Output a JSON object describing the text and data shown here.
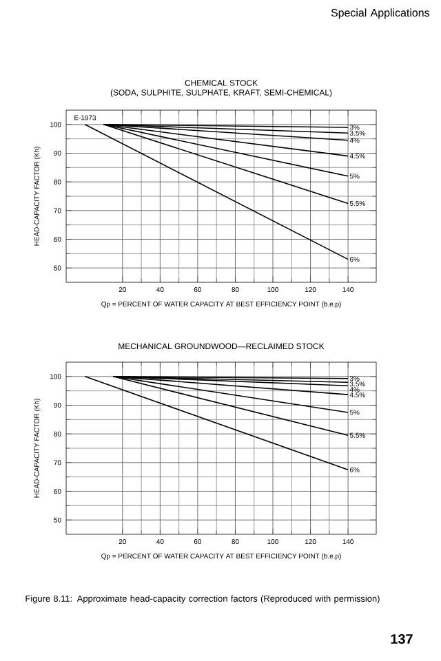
{
  "chart_data": [
    {
      "type": "line",
      "title": "CHEMICAL STOCK",
      "subtitle": "(SODA, SULPHITE, SULPHATE, KRAFT, SEMI-CHEMICAL)",
      "xlabel": "Qp = PERCENT OF WATER CAPACITY AT BEST EFFICIENCY POINT (b.e.p)",
      "ylabel": "HEAD-CAPACITY FACTOR (Kh)",
      "annotations": [
        "E-1973",
        "Special Applications"
      ],
      "xlim": [
        -10,
        155
      ],
      "ylim": [
        45,
        105
      ],
      "xticks": [
        20,
        40,
        60,
        80,
        100,
        120,
        140
      ],
      "yticks": [
        50,
        60,
        70,
        80,
        90,
        100
      ],
      "grid": true,
      "legend": "right",
      "series": [
        {
          "name": "3%",
          "color": "#000000",
          "x": [
            10,
            140
          ],
          "values": [
            100,
            99
          ]
        },
        {
          "name": "3.5%",
          "color": "#000000",
          "x": [
            10,
            140
          ],
          "values": [
            100,
            97
          ]
        },
        {
          "name": "4%",
          "color": "#000000",
          "x": [
            10,
            140
          ],
          "values": [
            100,
            94.5
          ]
        },
        {
          "name": "4.5%",
          "color": "#000000",
          "x": [
            10,
            140
          ],
          "values": [
            100,
            89
          ]
        },
        {
          "name": "5%",
          "color": "#000000",
          "x": [
            10,
            140
          ],
          "values": [
            100,
            82
          ]
        },
        {
          "name": "5.5%",
          "color": "#000000",
          "x": [
            10,
            140
          ],
          "values": [
            100,
            72.5
          ]
        },
        {
          "name": "6%",
          "color": "#000000",
          "x": [
            0,
            140
          ],
          "values": [
            100,
            53
          ]
        }
      ]
    },
    {
      "type": "line",
      "title": "MECHANICAL GROUNDWOOD—RECLAIMED STOCK",
      "xlabel": "Qp = PERCENT OF WATER CAPACITY AT BEST EFFICIENCY POINT (b.e.p)",
      "ylabel": "HEAD-CAPACITY FACTOR (Kh)",
      "annotations": [
        "Figure 8.11: Approximate head-capacity correction factors (Reproduced with permission)",
        "137"
      ],
      "xlim": [
        -10,
        155
      ],
      "ylim": [
        45,
        105
      ],
      "xticks": [
        20,
        40,
        60,
        80,
        100,
        120,
        140
      ],
      "yticks": [
        50,
        60,
        70,
        80,
        90,
        100
      ],
      "grid": true,
      "legend": "right",
      "series": [
        {
          "name": "3%",
          "color": "#000000",
          "x": [
            15,
            140
          ],
          "values": [
            100,
            99.3
          ]
        },
        {
          "name": "3.5%",
          "color": "#000000",
          "x": [
            15,
            140
          ],
          "values": [
            100,
            98
          ]
        },
        {
          "name": "4%",
          "color": "#000000",
          "x": [
            15,
            140
          ],
          "values": [
            100,
            96.8
          ]
        },
        {
          "name": "4.5%",
          "color": "#000000",
          "x": [
            15,
            140
          ],
          "values": [
            100,
            93.7
          ]
        },
        {
          "name": "5%",
          "color": "#000000",
          "x": [
            15,
            140
          ],
          "values": [
            100,
            87.5
          ]
        },
        {
          "name": "5.5%",
          "color": "#000000",
          "x": [
            15,
            140
          ],
          "values": [
            100,
            79.5
          ]
        },
        {
          "name": "6%",
          "color": "#000000",
          "x": [
            0,
            140
          ],
          "values": [
            100,
            67.5
          ]
        }
      ]
    }
  ]
}
